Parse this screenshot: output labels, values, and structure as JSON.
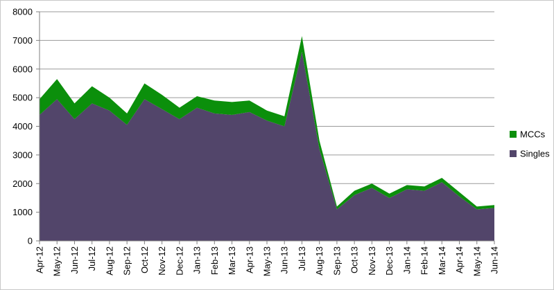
{
  "chart_data": {
    "type": "area",
    "stacked": true,
    "title": "",
    "xlabel": "",
    "ylabel": "",
    "ylim": [
      0,
      8000
    ],
    "y_ticks": [
      0,
      1000,
      2000,
      3000,
      4000,
      5000,
      6000,
      7000,
      8000
    ],
    "grid": true,
    "legend_position": "right",
    "categories": [
      "Apr-12",
      "May-12",
      "Jun-12",
      "Jul-12",
      "Aug-12",
      "Sep-12",
      "Oct-12",
      "Nov-12",
      "Dec-12",
      "Jan-13",
      "Feb-13",
      "Mar-13",
      "Apr-13",
      "May-13",
      "Jun-13",
      "Jul-13",
      "Aug-13",
      "Sep-13",
      "Oct-13",
      "Nov-13",
      "Dec-13",
      "Jan-14",
      "Feb-14",
      "Mar-14",
      "Apr-14",
      "May-14",
      "Jun-14"
    ],
    "series": [
      {
        "name": "Singles",
        "color": "#52456a",
        "values": [
          4400,
          4950,
          4250,
          4800,
          4550,
          4050,
          4950,
          4600,
          4250,
          4650,
          4450,
          4400,
          4500,
          4200,
          4000,
          6600,
          3200,
          1100,
          1600,
          1850,
          1500,
          1800,
          1750,
          2050,
          1550,
          1100,
          1150
        ]
      },
      {
        "name": "MCCs",
        "color": "#0b8f0b",
        "values": [
          550,
          700,
          550,
          600,
          450,
          400,
          550,
          500,
          400,
          400,
          450,
          450,
          400,
          350,
          350,
          550,
          300,
          100,
          150,
          150,
          150,
          150,
          150,
          150,
          150,
          100,
          100
        ]
      }
    ]
  }
}
